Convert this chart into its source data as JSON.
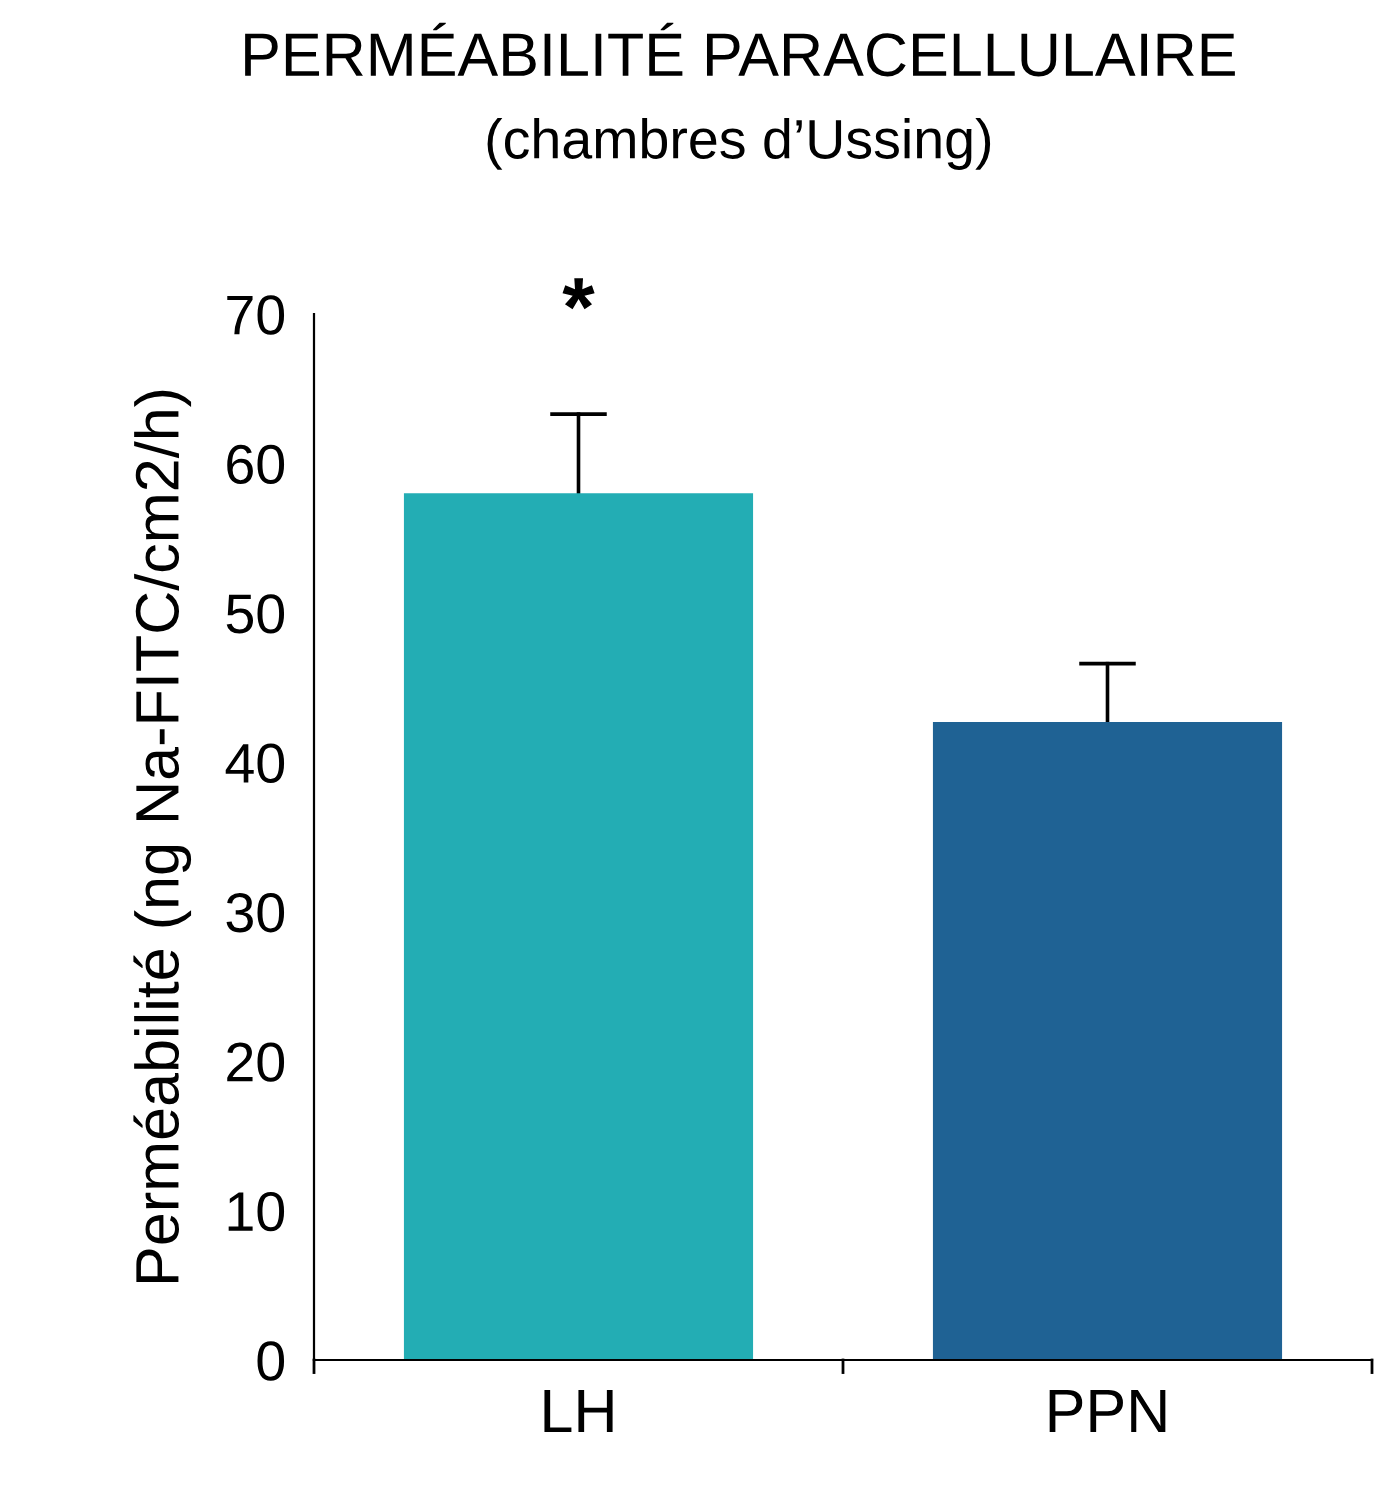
{
  "chart_data": {
    "type": "bar",
    "title": "PERMÉABILITÉ PARACELLULAIRE",
    "subtitle": "(chambres d’Ussing)",
    "ylabel": "Perméabilité (ng Na-FITC/cm2/h)",
    "categories": [
      "LH",
      "PPN"
    ],
    "values": [
      58.0,
      42.7
    ],
    "colors": [
      "#23adb4",
      "#1f6294"
    ],
    "errors": [
      [
        58.0,
        63.3
      ],
      [
        42.7,
        46.6
      ]
    ],
    "ylim": [
      0,
      70
    ],
    "yticks": [
      0,
      10,
      20,
      30,
      40,
      50,
      60,
      70
    ],
    "grid": false,
    "legend": false,
    "annotations": [
      "*"
    ]
  }
}
